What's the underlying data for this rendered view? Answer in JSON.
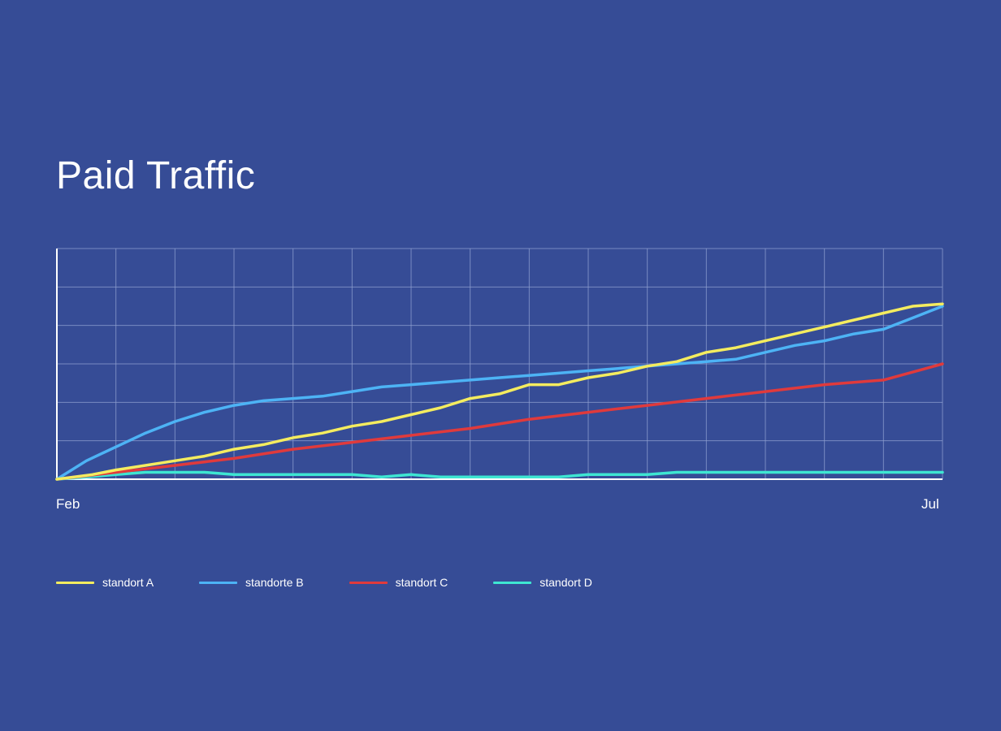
{
  "title": "Paid Traffic",
  "colors": {
    "background": "#364c96",
    "grid": "#8f9fd0",
    "axis": "#ffffff"
  },
  "x_axis": {
    "start_label": "Feb",
    "end_label": "Jul"
  },
  "chart_data": {
    "type": "line",
    "title": "Paid Traffic",
    "xlabel": "",
    "ylabel": "",
    "x_tick_labels": [
      "Feb",
      "Jul"
    ],
    "ylim": [
      0,
      100
    ],
    "grid": true,
    "legend_position": "bottom-left",
    "x_range": [
      0,
      150
    ],
    "series": [
      {
        "name": "standort A",
        "color": "#f4ec5f",
        "points": [
          [
            0,
            0
          ],
          [
            6,
            2
          ],
          [
            10,
            4
          ],
          [
            15,
            6
          ],
          [
            20,
            8
          ],
          [
            25,
            10
          ],
          [
            30,
            13
          ],
          [
            35,
            15
          ],
          [
            40,
            18
          ],
          [
            45,
            20
          ],
          [
            50,
            23
          ],
          [
            55,
            25
          ],
          [
            60,
            28
          ],
          [
            65,
            31
          ],
          [
            70,
            35
          ],
          [
            75,
            37
          ],
          [
            80,
            41
          ],
          [
            85,
            41
          ],
          [
            90,
            44
          ],
          [
            95,
            46
          ],
          [
            100,
            49
          ],
          [
            105,
            51
          ],
          [
            110,
            55
          ],
          [
            115,
            57
          ],
          [
            120,
            60
          ],
          [
            125,
            63
          ],
          [
            130,
            66
          ],
          [
            135,
            69
          ],
          [
            140,
            72
          ],
          [
            145,
            75
          ],
          [
            150,
            76
          ]
        ]
      },
      {
        "name": "standorte B",
        "color": "#4db3f5",
        "points": [
          [
            0,
            0
          ],
          [
            5,
            8
          ],
          [
            10,
            14
          ],
          [
            15,
            20
          ],
          [
            20,
            25
          ],
          [
            25,
            29
          ],
          [
            30,
            32
          ],
          [
            35,
            34
          ],
          [
            40,
            35
          ],
          [
            45,
            36
          ],
          [
            50,
            38
          ],
          [
            55,
            40
          ],
          [
            60,
            41
          ],
          [
            65,
            42
          ],
          [
            70,
            43
          ],
          [
            75,
            44
          ],
          [
            80,
            45
          ],
          [
            85,
            46
          ],
          [
            90,
            47
          ],
          [
            95,
            48
          ],
          [
            100,
            49
          ],
          [
            105,
            50
          ],
          [
            110,
            51
          ],
          [
            115,
            52
          ],
          [
            120,
            55
          ],
          [
            125,
            58
          ],
          [
            130,
            60
          ],
          [
            135,
            63
          ],
          [
            140,
            65
          ],
          [
            145,
            70
          ],
          [
            150,
            75
          ]
        ]
      },
      {
        "name": "standort C",
        "color": "#e03a3c",
        "points": [
          [
            0,
            0
          ],
          [
            10,
            3
          ],
          [
            20,
            6
          ],
          [
            30,
            9
          ],
          [
            40,
            13
          ],
          [
            50,
            16
          ],
          [
            60,
            19
          ],
          [
            70,
            22
          ],
          [
            80,
            26
          ],
          [
            90,
            29
          ],
          [
            100,
            32
          ],
          [
            110,
            35
          ],
          [
            120,
            38
          ],
          [
            130,
            41
          ],
          [
            140,
            43
          ],
          [
            150,
            50
          ]
        ]
      },
      {
        "name": "standort D",
        "color": "#3ee6d2",
        "points": [
          [
            0,
            0
          ],
          [
            5,
            1
          ],
          [
            10,
            2
          ],
          [
            15,
            3
          ],
          [
            20,
            3
          ],
          [
            25,
            3
          ],
          [
            30,
            2
          ],
          [
            35,
            2
          ],
          [
            40,
            2
          ],
          [
            45,
            2
          ],
          [
            50,
            2
          ],
          [
            55,
            1
          ],
          [
            60,
            2
          ],
          [
            65,
            1
          ],
          [
            70,
            1
          ],
          [
            75,
            1
          ],
          [
            80,
            1
          ],
          [
            85,
            1
          ],
          [
            90,
            2
          ],
          [
            95,
            2
          ],
          [
            100,
            2
          ],
          [
            105,
            3
          ],
          [
            110,
            3
          ],
          [
            115,
            3
          ],
          [
            120,
            3
          ],
          [
            125,
            3
          ],
          [
            130,
            3
          ],
          [
            135,
            3
          ],
          [
            140,
            3
          ],
          [
            145,
            3
          ],
          [
            150,
            3
          ]
        ]
      }
    ]
  }
}
